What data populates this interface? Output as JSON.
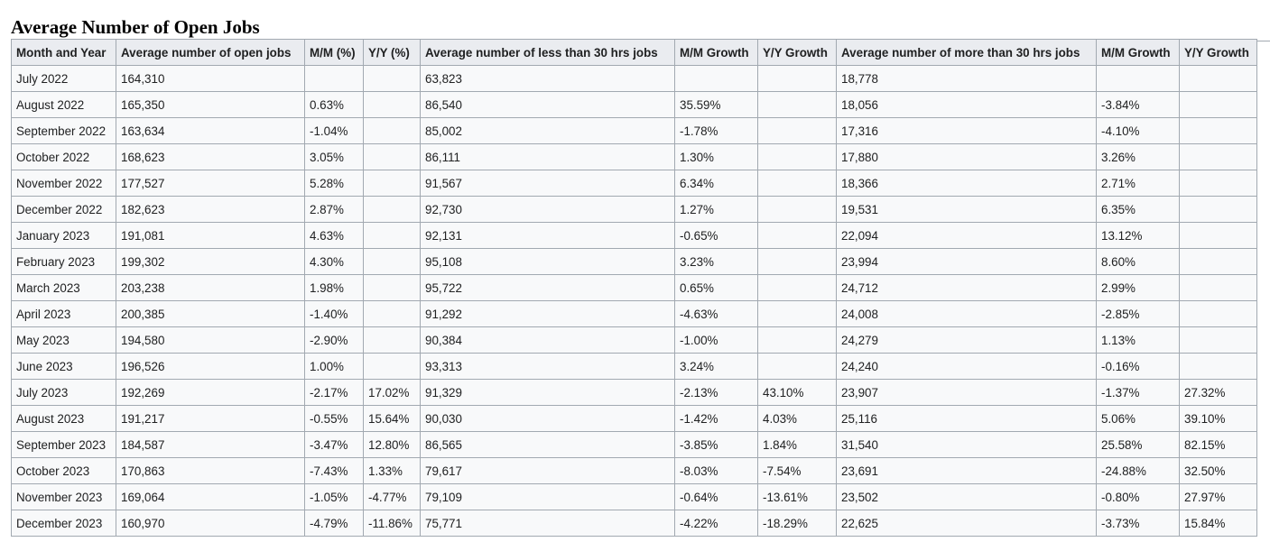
{
  "page": {
    "heading": "Average Number of Open Jobs"
  },
  "table": {
    "columns": [
      "Month and Year",
      "Average number of open jobs",
      "M/M (%)",
      "Y/Y (%)",
      "Average number of less than 30 hrs jobs",
      "M/M Growth",
      "Y/Y Growth",
      "Average number of more than 30 hrs jobs",
      "M/M Growth",
      "Y/Y Growth"
    ],
    "rows": [
      [
        "July 2022",
        "164,310",
        "",
        "",
        "63,823",
        "",
        "",
        "18,778",
        "",
        ""
      ],
      [
        "August 2022",
        "165,350",
        "0.63%",
        "",
        "86,540",
        "35.59%",
        "",
        "18,056",
        "-3.84%",
        ""
      ],
      [
        "September 2022",
        "163,634",
        "-1.04%",
        "",
        "85,002",
        "-1.78%",
        "",
        "17,316",
        "-4.10%",
        ""
      ],
      [
        "October 2022",
        "168,623",
        "3.05%",
        "",
        "86,111",
        "1.30%",
        "",
        "17,880",
        "3.26%",
        ""
      ],
      [
        "November 2022",
        "177,527",
        "5.28%",
        "",
        "91,567",
        "6.34%",
        "",
        "18,366",
        "2.71%",
        ""
      ],
      [
        "December 2022",
        "182,623",
        "2.87%",
        "",
        "92,730",
        "1.27%",
        "",
        "19,531",
        "6.35%",
        ""
      ],
      [
        "January 2023",
        "191,081",
        "4.63%",
        "",
        "92,131",
        "-0.65%",
        "",
        "22,094",
        "13.12%",
        ""
      ],
      [
        "February 2023",
        "199,302",
        "4.30%",
        "",
        "95,108",
        "3.23%",
        "",
        "23,994",
        "8.60%",
        ""
      ],
      [
        "March 2023",
        "203,238",
        "1.98%",
        "",
        "95,722",
        "0.65%",
        "",
        "24,712",
        "2.99%",
        ""
      ],
      [
        "April 2023",
        "200,385",
        "-1.40%",
        "",
        "91,292",
        "-4.63%",
        "",
        "24,008",
        "-2.85%",
        ""
      ],
      [
        "May 2023",
        "194,580",
        "-2.90%",
        "",
        "90,384",
        "-1.00%",
        "",
        "24,279",
        "1.13%",
        ""
      ],
      [
        "June 2023",
        "196,526",
        "1.00%",
        "",
        "93,313",
        "3.24%",
        "",
        "24,240",
        "-0.16%",
        ""
      ],
      [
        "July 2023",
        "192,269",
        "-2.17%",
        "17.02%",
        "91,329",
        "-2.13%",
        "43.10%",
        "23,907",
        "-1.37%",
        "27.32%"
      ],
      [
        "August 2023",
        "191,217",
        "-0.55%",
        "15.64%",
        "90,030",
        "-1.42%",
        "4.03%",
        "25,116",
        "5.06%",
        "39.10%"
      ],
      [
        "September 2023",
        "184,587",
        "-3.47%",
        "12.80%",
        "86,565",
        "-3.85%",
        "1.84%",
        "31,540",
        "25.58%",
        "82.15%"
      ],
      [
        "October 2023",
        "170,863",
        "-7.43%",
        "1.33%",
        "79,617",
        "-8.03%",
        "-7.54%",
        "23,691",
        "-24.88%",
        "32.50%"
      ],
      [
        "November 2023",
        "169,064",
        "-1.05%",
        "-4.77%",
        "79,109",
        "-0.64%",
        "-13.61%",
        "23,502",
        "-0.80%",
        "27.97%"
      ],
      [
        "December 2023",
        "160,970",
        "-4.79%",
        "-11.86%",
        "75,771",
        "-4.22%",
        "-18.29%",
        "22,625",
        "-3.73%",
        "15.84%"
      ]
    ]
  },
  "colors": {
    "header_background": "#eaecf0",
    "cell_background": "#f8f9fa",
    "border": "#a2a9b1",
    "text": "#202122"
  }
}
